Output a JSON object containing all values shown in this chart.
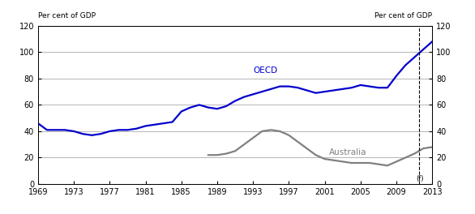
{
  "oecd_years": [
    1969,
    1970,
    1971,
    1972,
    1973,
    1974,
    1975,
    1976,
    1977,
    1978,
    1979,
    1980,
    1981,
    1982,
    1983,
    1984,
    1985,
    1986,
    1987,
    1988,
    1989,
    1990,
    1991,
    1992,
    1993,
    1994,
    1995,
    1996,
    1997,
    1998,
    1999,
    2000,
    2001,
    2002,
    2003,
    2004,
    2005,
    2006,
    2007,
    2008,
    2009,
    2010,
    2011,
    2012,
    2013
  ],
  "oecd_values": [
    46,
    41,
    41,
    41,
    40,
    38,
    37,
    38,
    40,
    41,
    41,
    42,
    44,
    45,
    46,
    47,
    55,
    58,
    60,
    58,
    57,
    59,
    63,
    66,
    68,
    70,
    72,
    74,
    74,
    73,
    71,
    69,
    70,
    71,
    72,
    73,
    75,
    74,
    73,
    73,
    82,
    90,
    96,
    102,
    108
  ],
  "aus_years": [
    1988,
    1989,
    1990,
    1991,
    1992,
    1993,
    1994,
    1995,
    1996,
    1997,
    1998,
    1999,
    2000,
    2001,
    2002,
    2003,
    2004,
    2005,
    2006,
    2007,
    2008,
    2009,
    2010,
    2011,
    2012,
    2013
  ],
  "aus_values": [
    22,
    22,
    23,
    25,
    30,
    35,
    40,
    41,
    40,
    37,
    32,
    27,
    22,
    19,
    18,
    17,
    16,
    16,
    16,
    15,
    14,
    17,
    20,
    23,
    27,
    28
  ],
  "oecd_color": "#0000cc",
  "aus_color": "#808080",
  "oecd_label": "OECD",
  "aus_label": "Australia",
  "ylabel_left": "Per cent of GDP",
  "ylabel_right": "Per cent of GDP",
  "ylim": [
    0,
    120
  ],
  "yticks": [
    0,
    20,
    40,
    60,
    80,
    100,
    120
  ],
  "xlim_left": 1969,
  "xlim_right": 2013,
  "xticks": [
    1969,
    1973,
    1977,
    1981,
    1985,
    1989,
    1993,
    1997,
    2001,
    2005,
    2009,
    2013
  ],
  "vline_x": 2011.5,
  "vline_label": "(f)",
  "background_color": "#ffffff",
  "grid_color": "#999999",
  "line_width": 1.6
}
